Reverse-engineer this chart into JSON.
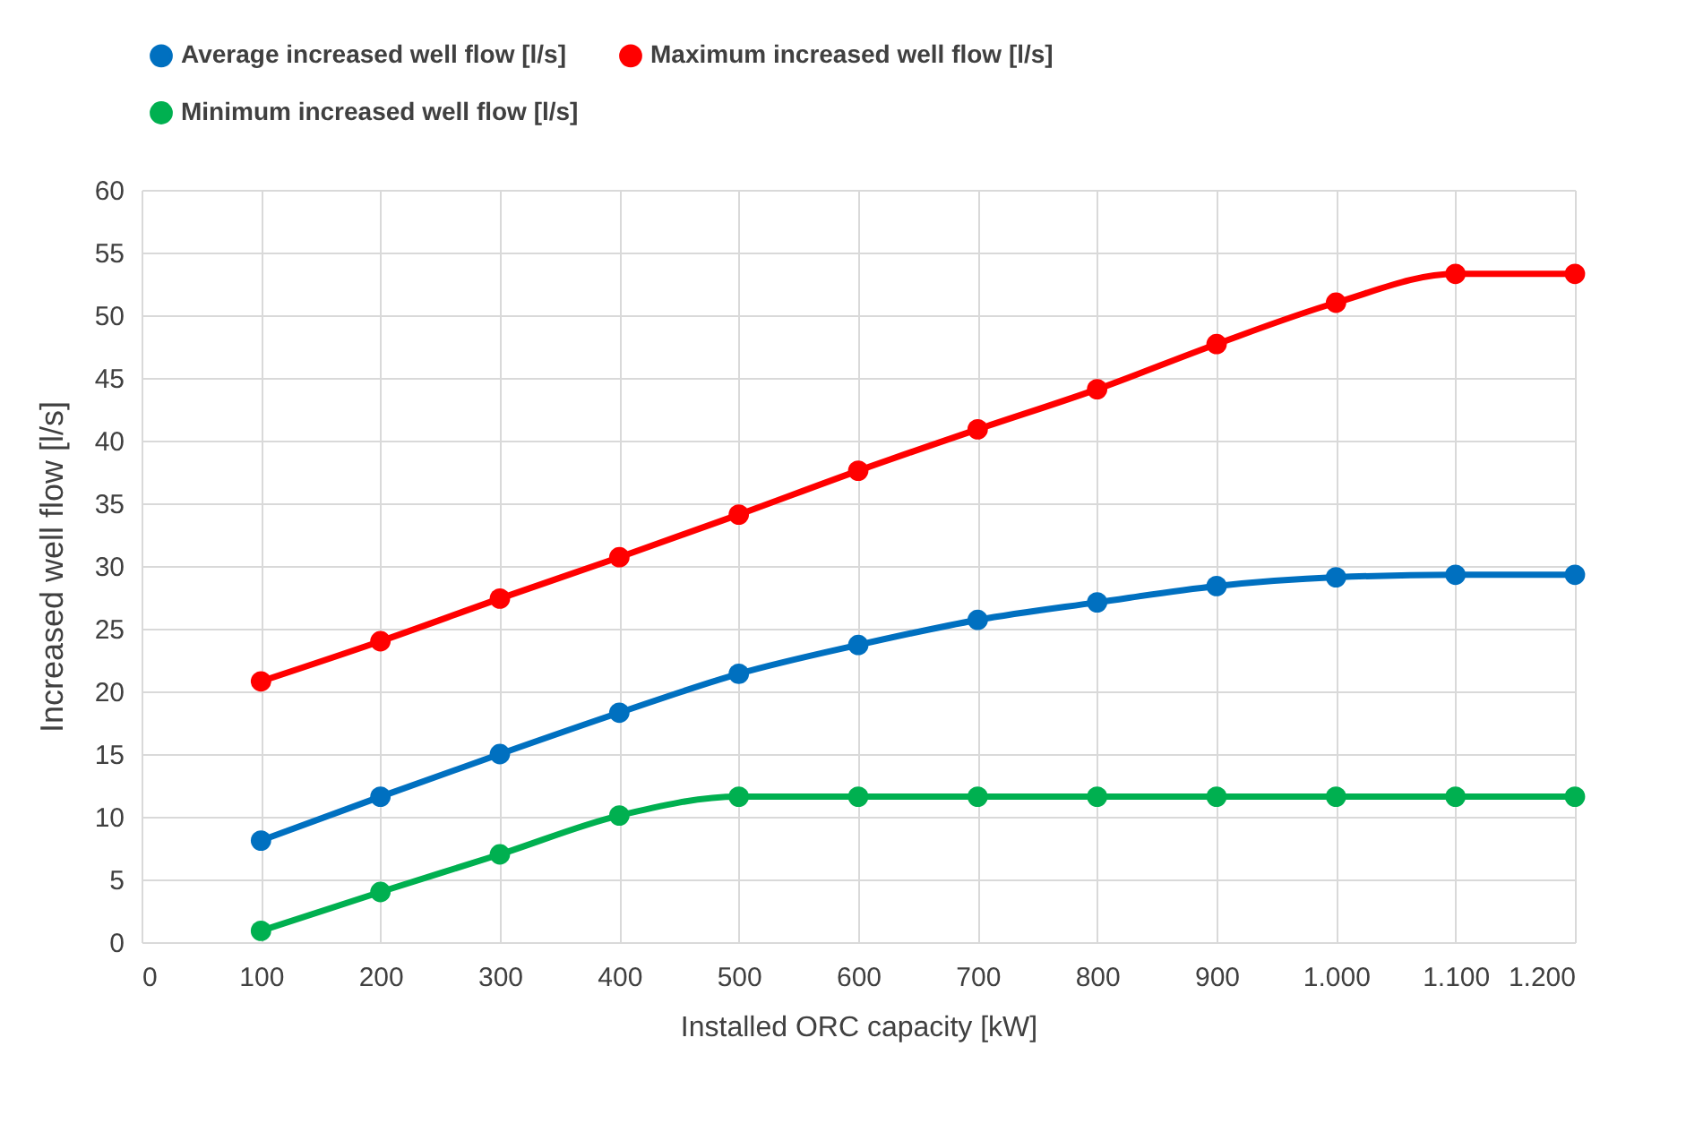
{
  "chart_data": {
    "type": "line",
    "xlabel": "Installed ORC capacity [kW]",
    "ylabel": "Increased well flow [l/s]",
    "x": [
      100,
      200,
      300,
      400,
      500,
      600,
      700,
      800,
      900,
      1000,
      1100,
      1200
    ],
    "series": [
      {
        "name": "Average increased well flow [l/s]",
        "color": "#0070c0",
        "values": [
          8.1,
          11.6,
          15,
          18.3,
          21.4,
          23.7,
          25.7,
          27.1,
          28.4,
          29.1,
          29.3,
          29.3
        ]
      },
      {
        "name": "Maximum increased well flow [l/s]",
        "color": "#ff0000",
        "values": [
          20.8,
          24,
          27.4,
          30.7,
          34.1,
          37.6,
          40.9,
          44.1,
          47.7,
          51,
          53.3,
          53.3
        ]
      },
      {
        "name": "Minimum increased well flow [l/s]",
        "color": "#00b050",
        "values": [
          0.9,
          4,
          7,
          10.1,
          11.6,
          11.6,
          11.6,
          11.6,
          11.6,
          11.6,
          11.6,
          11.6
        ]
      }
    ],
    "xlim": [
      0,
      1200
    ],
    "xticks": [
      0,
      100,
      200,
      300,
      400,
      500,
      600,
      700,
      800,
      900,
      {
        "value": 1000,
        "label": "1.000"
      },
      {
        "value": 1100,
        "label": "1.100"
      },
      {
        "value": 1200,
        "label": "1.200"
      }
    ],
    "ylim": [
      0,
      60
    ],
    "yticks": [
      0,
      5,
      10,
      15,
      20,
      25,
      30,
      35,
      40,
      45,
      50,
      55,
      60
    ],
    "grid": true,
    "legend": "top",
    "marker": "circle",
    "line_style": "solid"
  }
}
